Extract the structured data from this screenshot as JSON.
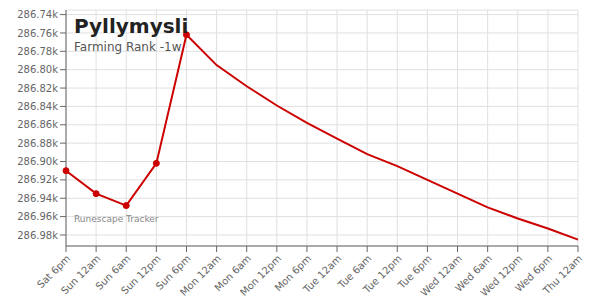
{
  "chart_data": {
    "type": "line",
    "title": "Pyllymysli",
    "subtitle": "Farming Rank -1w",
    "categories": [
      "Sat 6pm",
      "Sun 12am",
      "Sun 6am",
      "Sun 12pm",
      "Sun 6pm",
      "Mon 12am",
      "Mon 6am",
      "Mon 12pm",
      "Mon 6pm",
      "Tue 12am",
      "Tue 6am",
      "Tue 12pm",
      "Tue 6pm",
      "Wed 12am",
      "Wed 6am",
      "Wed 12pm",
      "Wed 6pm",
      "Thu 12am"
    ],
    "series": [
      {
        "type": "line",
        "color": "#cc0000",
        "values": [
          286910,
          286935,
          286948,
          286902,
          286762,
          286795,
          286818,
          286839,
          286858,
          286875,
          286892,
          286905,
          286920,
          286935,
          286950,
          286962,
          286973,
          286985
        ]
      },
      {
        "type": "scatter",
        "marker": "circle",
        "color": "#cc0000",
        "values": [
          286910,
          286935,
          286948,
          286902,
          286762,
          null,
          null,
          null,
          null,
          null,
          null,
          null,
          null,
          null,
          null,
          null,
          null,
          null
        ]
      }
    ],
    "ylim": [
      286992,
      286735
    ],
    "yticks": [
      {
        "value": 286740,
        "label": "286.74k"
      },
      {
        "value": 286760,
        "label": "286.76k"
      },
      {
        "value": 286780,
        "label": "286.78k"
      },
      {
        "value": 286800,
        "label": "286.80k"
      },
      {
        "value": 286820,
        "label": "286.82k"
      },
      {
        "value": 286840,
        "label": "286.84k"
      },
      {
        "value": 286860,
        "label": "286.86k"
      },
      {
        "value": 286880,
        "label": "286.88k"
      },
      {
        "value": 286900,
        "label": "286.90k"
      },
      {
        "value": 286920,
        "label": "286.92k"
      },
      {
        "value": 286940,
        "label": "286.94k"
      },
      {
        "value": 286960,
        "label": "286.96k"
      },
      {
        "value": 286980,
        "label": "286.98k"
      }
    ],
    "grid": true,
    "annotations": [
      "Runescape Tracker"
    ]
  }
}
